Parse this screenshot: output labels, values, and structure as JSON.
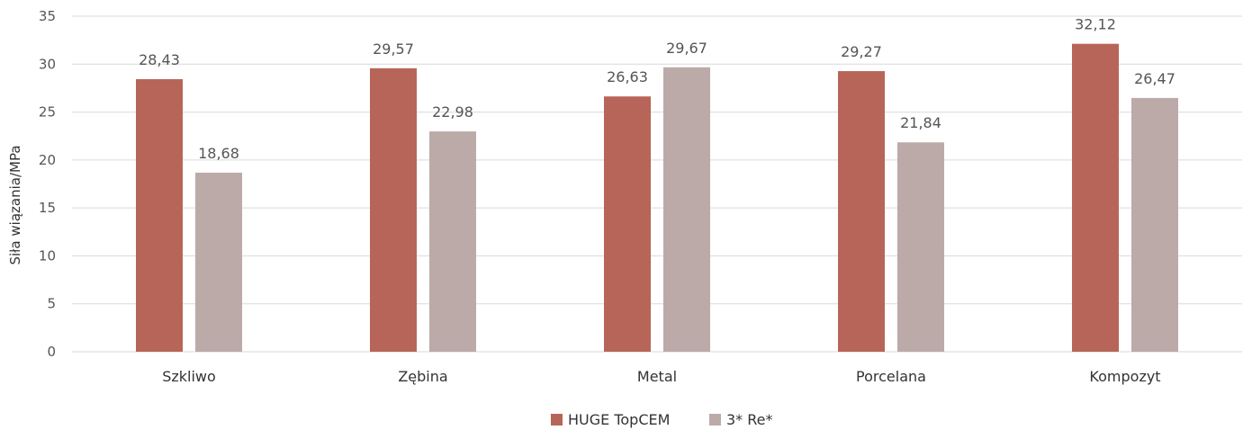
{
  "chart_data": {
    "type": "bar",
    "title": "",
    "xlabel": "",
    "ylabel": "Siła wiązania/MPa",
    "categories": [
      "Szkliwo",
      "Zębina",
      "Metal",
      "Porcelana",
      "Kompozyt"
    ],
    "series": [
      {
        "name": "HUGE TopCEM",
        "color": "#b76558",
        "values": [
          28.43,
          29.57,
          26.63,
          29.27,
          32.12
        ],
        "labels": [
          "28,43",
          "29,57",
          "26,63",
          "29,27",
          "32,12"
        ]
      },
      {
        "name": "3* Re*",
        "color": "#bcaaa9",
        "values": [
          18.68,
          22.98,
          29.67,
          21.84,
          26.47
        ],
        "labels": [
          "18,68",
          "22,98",
          "29,67",
          "21,84",
          "26,47"
        ]
      }
    ],
    "ylim": [
      0,
      35
    ],
    "yticks": [
      "0",
      "5",
      "10",
      "15",
      "20",
      "25",
      "30",
      "35"
    ],
    "grid": true,
    "legend_position": "bottom"
  }
}
